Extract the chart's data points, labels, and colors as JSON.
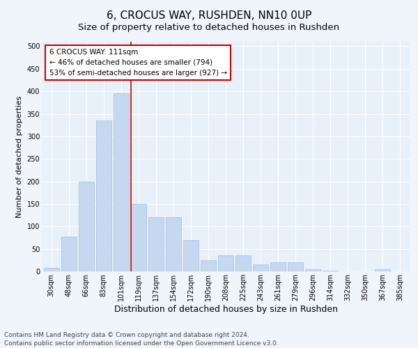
{
  "title": "6, CROCUS WAY, RUSHDEN, NN10 0UP",
  "subtitle": "Size of property relative to detached houses in Rushden",
  "xlabel": "Distribution of detached houses by size in Rushden",
  "ylabel": "Number of detached properties",
  "categories": [
    "30sqm",
    "48sqm",
    "66sqm",
    "83sqm",
    "101sqm",
    "119sqm",
    "137sqm",
    "154sqm",
    "172sqm",
    "190sqm",
    "208sqm",
    "225sqm",
    "243sqm",
    "261sqm",
    "279sqm",
    "296sqm",
    "314sqm",
    "332sqm",
    "350sqm",
    "367sqm",
    "385sqm"
  ],
  "values": [
    8,
    78,
    200,
    335,
    395,
    150,
    120,
    120,
    70,
    25,
    35,
    35,
    15,
    20,
    20,
    5,
    2,
    0,
    0,
    5,
    0
  ],
  "bar_color": "#c5d8f0",
  "bar_edge_color": "#a0bedd",
  "plot_bg_color": "#e8f0fa",
  "fig_bg_color": "#f0f4fb",
  "grid_color": "#ffffff",
  "marker_line_color": "#cc0000",
  "annotation_text": "6 CROCUS WAY: 111sqm\n← 46% of detached houses are smaller (794)\n53% of semi-detached houses are larger (927) →",
  "annotation_box_facecolor": "#ffffff",
  "annotation_box_edgecolor": "#cc0000",
  "ylim": [
    0,
    510
  ],
  "yticks": [
    0,
    50,
    100,
    150,
    200,
    250,
    300,
    350,
    400,
    450,
    500
  ],
  "footnote": "Contains HM Land Registry data © Crown copyright and database right 2024.\nContains public sector information licensed under the Open Government Licence v3.0.",
  "title_fontsize": 11,
  "subtitle_fontsize": 9.5,
  "xlabel_fontsize": 9,
  "ylabel_fontsize": 8,
  "tick_fontsize": 7,
  "annotation_fontsize": 7.5,
  "footnote_fontsize": 6.5
}
